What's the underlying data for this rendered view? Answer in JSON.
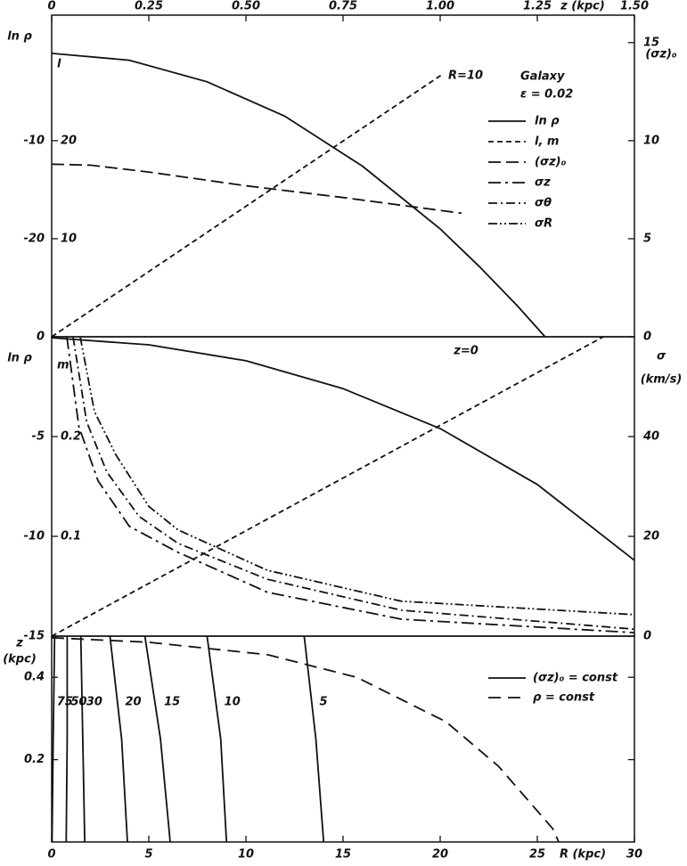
{
  "chart_data": [
    {
      "type": "line",
      "xlabel": "z (kpc)",
      "xlim": [
        0,
        1.5
      ],
      "xticks": [
        0,
        {
          "value": 0.25,
          "label": "0.25"
        },
        {
          "value": 0.5,
          "label": "0.50"
        },
        {
          "value": 0.75,
          "label": "0.75"
        },
        {
          "value": 1,
          "label": "1.00"
        },
        {
          "value": 1.25,
          "label": "1.25"
        },
        {
          "value": 1.5,
          "label": "1.50"
        }
      ],
      "ylabel": "ln ρ",
      "ylim": [
        -30,
        2.8
      ],
      "yticks": [
        -10,
        -20
      ],
      "y2label": "(σz)₀",
      "y2lim": [
        0,
        16.4
      ],
      "y2ticks": [
        0,
        5,
        10,
        15
      ],
      "y3label": "l",
      "y3lim": [
        0,
        32.8
      ],
      "y3ticks": [
        10,
        20
      ],
      "annotation": "R=10",
      "legend_title": "Galaxy",
      "legend_subtitle": "ε = 0.02",
      "series": [
        {
          "name": "ln ρ",
          "dash": "none",
          "axis": "y",
          "x": [
            0,
            0.2,
            0.4,
            0.6,
            0.8,
            1.0,
            1.1,
            1.2,
            1.27
          ],
          "values": [
            -1.1,
            -1.8,
            -4.0,
            -7.5,
            -12.6,
            -19.0,
            -22.8,
            -26.9,
            -30.0
          ]
        },
        {
          "name": "l, m",
          "dash": "6 4",
          "axis": "y3",
          "x": [
            0,
            1.007
          ],
          "values": [
            0,
            26.8
          ]
        },
        {
          "name": "(σz)₀",
          "dash": "14 6",
          "axis": "y2",
          "x": [
            0,
            0.1,
            0.25,
            0.5,
            0.75,
            1.055
          ],
          "values": [
            8.8,
            8.75,
            8.4,
            7.7,
            7.1,
            6.3
          ]
        }
      ]
    },
    {
      "type": "line",
      "annotation": "z=0",
      "xlim": [
        0,
        30
      ],
      "ylabel": "ln ρ",
      "ylim": [
        -15,
        0
      ],
      "yticks": [
        0,
        -5,
        -10,
        -15
      ],
      "y2label": "σ",
      "y2unit": "(km/s)",
      "y2lim": [
        0,
        60
      ],
      "y2ticks": [
        0,
        20,
        40
      ],
      "y3label": "m",
      "y3lim": [
        0,
        0.3
      ],
      "y3ticks": [
        0.1,
        0.2
      ],
      "series": [
        {
          "dash": "none",
          "axis": "y",
          "x": [
            0,
            5,
            10,
            15,
            20,
            25,
            30
          ],
          "values": [
            -0.05,
            -0.4,
            -1.2,
            -2.6,
            -4.6,
            -7.4,
            -11.2
          ]
        },
        {
          "dash": "6 4",
          "axis": "y3",
          "x": [
            0,
            28.4
          ],
          "values": [
            0,
            0.3
          ]
        },
        {
          "name": "σz",
          "dash": "14 5 3 5",
          "axis": "y2",
          "x": [
            0.78,
            1.4,
            2.39,
            4,
            6.5,
            11.1,
            18,
            30
          ],
          "values": [
            60,
            42,
            31.1,
            22,
            16.8,
            8.8,
            3.4,
            0.7
          ]
        },
        {
          "name": "σθ",
          "dash": "10 4 2 4",
          "axis": "y2",
          "x": [
            1.1,
            1.8,
            2.84,
            4.5,
            6.5,
            11.1,
            18,
            30
          ],
          "values": [
            60,
            43,
            32.9,
            24,
            18.6,
            11.4,
            5.2,
            1.4
          ]
        },
        {
          "name": "σR",
          "dash": "10 3 2 3 2 3",
          "axis": "y2",
          "x": [
            1.47,
            2.2,
            3.3,
            5,
            6.5,
            11.1,
            18,
            30
          ],
          "values": [
            60,
            45,
            36.4,
            26,
            21.3,
            13.2,
            7.0,
            4.3
          ]
        }
      ]
    },
    {
      "type": "line",
      "xlabel": "R (kpc)",
      "xlim": [
        0,
        30
      ],
      "xticks": [
        0,
        5,
        10,
        15,
        20,
        25,
        30
      ],
      "ylabel": "z",
      "yunit": "(kpc)",
      "ylim": [
        0,
        0.5
      ],
      "yticks": [
        0.2,
        0.4
      ],
      "legend": [
        {
          "name": "(σz)₀ = const",
          "dash": "none"
        },
        {
          "name": "ρ = const",
          "dash": "14 8"
        }
      ],
      "series": [
        {
          "name": "75",
          "dash": "none",
          "axis": "y",
          "x": [
            0.15,
            0.08,
            0.02
          ],
          "values": [
            0.5,
            0.25,
            0
          ]
        },
        {
          "name": "50",
          "dash": "none",
          "axis": "y",
          "x": [
            0.8,
            0.8,
            0.75
          ],
          "values": [
            0.5,
            0.25,
            0
          ]
        },
        {
          "name": "30",
          "dash": "none",
          "axis": "y",
          "x": [
            1.5,
            1.6,
            1.7
          ],
          "values": [
            0.5,
            0.25,
            0
          ]
        },
        {
          "name": "20",
          "dash": "none",
          "axis": "y",
          "x": [
            3.0,
            3.6,
            3.9
          ],
          "values": [
            0.5,
            0.25,
            0
          ]
        },
        {
          "name": "15",
          "dash": "none",
          "axis": "y",
          "x": [
            4.8,
            5.6,
            6.1
          ],
          "values": [
            0.5,
            0.25,
            0
          ]
        },
        {
          "name": "10",
          "dash": "none",
          "axis": "y",
          "x": [
            8.0,
            8.7,
            9.0
          ],
          "values": [
            0.5,
            0.25,
            0
          ]
        },
        {
          "name": "5",
          "dash": "none",
          "axis": "y",
          "x": [
            13.0,
            13.6,
            14.0
          ],
          "values": [
            0.5,
            0.25,
            0
          ]
        },
        {
          "dash": "14 8",
          "axis": "y",
          "x": [
            0,
            5,
            11.1,
            15.7,
            20.3,
            23.0,
            25.8,
            26.1
          ],
          "values": [
            0.496,
            0.485,
            0.455,
            0.4,
            0.292,
            0.184,
            0.032,
            0
          ]
        }
      ]
    }
  ]
}
